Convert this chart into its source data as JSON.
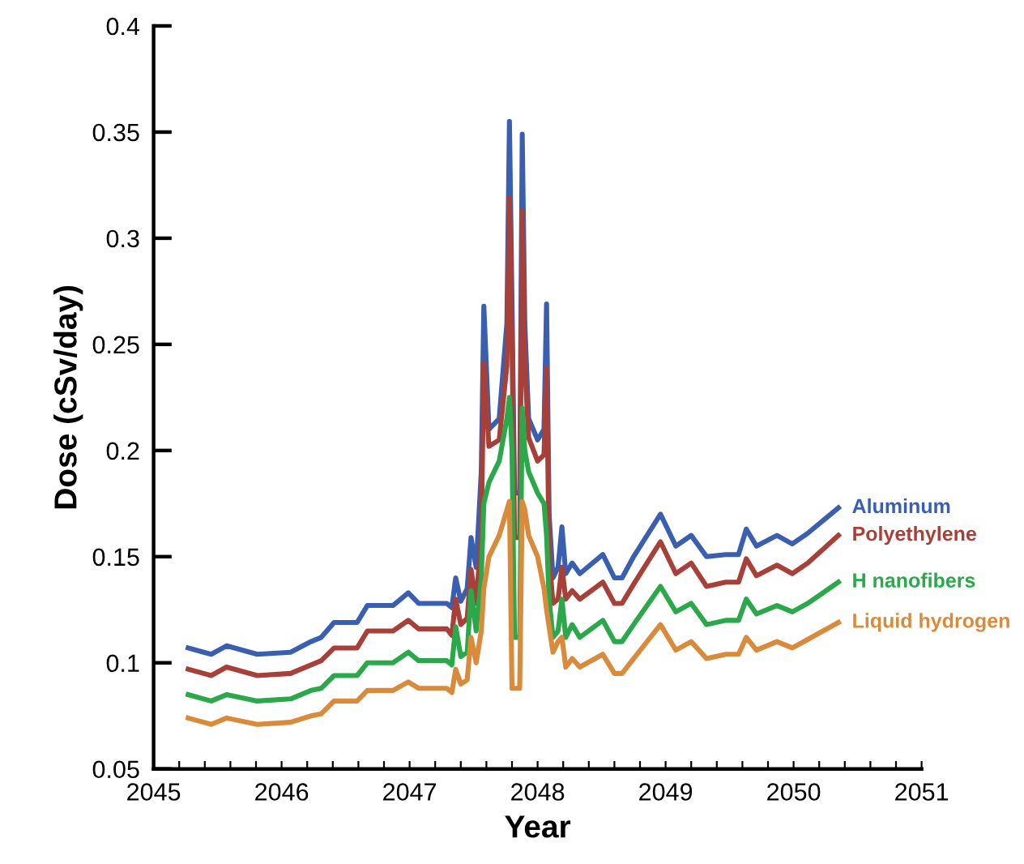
{
  "chart_data": {
    "type": "line",
    "xlabel": "Year",
    "ylabel": "Dose (cSv/day)",
    "xlim": [
      2045,
      2051
    ],
    "ylim": [
      0.05,
      0.4
    ],
    "xticks": [
      2045,
      {
        "value": 2045.2,
        "label": null
      },
      {
        "value": 2045.4,
        "label": null
      },
      {
        "value": 2045.6,
        "label": null
      },
      {
        "value": 2045.8,
        "label": null
      },
      2046,
      {
        "value": 2046.2,
        "label": null
      },
      {
        "value": 2046.4,
        "label": null
      },
      {
        "value": 2046.6,
        "label": null
      },
      {
        "value": 2046.8,
        "label": null
      },
      2047,
      {
        "value": 2047.2,
        "label": null
      },
      {
        "value": 2047.4,
        "label": null
      },
      {
        "value": 2047.6,
        "label": null
      },
      {
        "value": 2047.8,
        "label": null
      },
      2048,
      {
        "value": 2048.2,
        "label": null
      },
      {
        "value": 2048.4,
        "label": null
      },
      {
        "value": 2048.6,
        "label": null
      },
      {
        "value": 2048.8,
        "label": null
      },
      2049,
      {
        "value": 2049.2,
        "label": null
      },
      {
        "value": 2049.4,
        "label": null
      },
      {
        "value": 2049.6,
        "label": null
      },
      {
        "value": 2049.8,
        "label": null
      },
      2050,
      {
        "value": 2050.2,
        "label": null
      },
      {
        "value": 2050.4,
        "label": null
      },
      {
        "value": 2050.6,
        "label": null
      },
      {
        "value": 2050.8,
        "label": null
      },
      2051
    ],
    "yticks": [
      0.05,
      0.1,
      0.15,
      0.2,
      0.25,
      0.3,
      0.35,
      0.4
    ],
    "grid": false,
    "legend": false,
    "marker": "none",
    "line_style": "solid",
    "x": [
      2045.27,
      2045.45,
      2045.57,
      2045.81,
      2046.07,
      2046.23,
      2046.31,
      2046.41,
      2046.59,
      2046.67,
      2046.87,
      2046.99,
      2047.07,
      2047.29,
      2047.33,
      2047.36,
      2047.4,
      2047.45,
      2047.48,
      2047.52,
      2047.56,
      2047.58,
      2047.62,
      2047.7,
      2047.76,
      2047.78,
      2047.8,
      2047.82,
      2047.86,
      2047.88,
      2047.9,
      2047.93,
      2048.0,
      2048.05,
      2048.07,
      2048.09,
      2048.12,
      2048.16,
      2048.19,
      2048.22,
      2048.27,
      2048.33,
      2048.51,
      2048.6,
      2048.66,
      2048.75,
      2048.96,
      2049.08,
      2049.2,
      2049.32,
      2049.47,
      2049.57,
      2049.63,
      2049.71,
      2049.87,
      2049.99,
      2050.11,
      2050.35
    ],
    "series": [
      {
        "name": "Aluminum",
        "color": "#3a5fb0",
        "values": [
          0.107,
          0.104,
          0.108,
          0.104,
          0.105,
          0.11,
          0.112,
          0.119,
          0.119,
          0.127,
          0.127,
          0.133,
          0.128,
          0.128,
          0.126,
          0.14,
          0.129,
          0.135,
          0.159,
          0.145,
          0.19,
          0.268,
          0.21,
          0.215,
          0.26,
          0.355,
          0.27,
          0.18,
          0.18,
          0.349,
          0.26,
          0.215,
          0.205,
          0.21,
          0.269,
          0.17,
          0.14,
          0.145,
          0.164,
          0.142,
          0.147,
          0.142,
          0.151,
          0.14,
          0.14,
          0.15,
          0.17,
          0.155,
          0.16,
          0.15,
          0.151,
          0.151,
          0.163,
          0.155,
          0.16,
          0.156,
          0.161,
          0.173
        ]
      },
      {
        "name": "Polyethylene",
        "color": "#a8403a",
        "values": [
          0.097,
          0.094,
          0.098,
          0.094,
          0.095,
          0.099,
          0.101,
          0.107,
          0.107,
          0.115,
          0.115,
          0.12,
          0.116,
          0.116,
          0.113,
          0.13,
          0.118,
          0.121,
          0.144,
          0.128,
          0.16,
          0.241,
          0.202,
          0.205,
          0.24,
          0.319,
          0.25,
          0.159,
          0.159,
          0.313,
          0.24,
          0.206,
          0.195,
          0.198,
          0.239,
          0.15,
          0.128,
          0.13,
          0.145,
          0.13,
          0.134,
          0.13,
          0.138,
          0.128,
          0.128,
          0.137,
          0.157,
          0.142,
          0.147,
          0.136,
          0.138,
          0.138,
          0.149,
          0.141,
          0.146,
          0.142,
          0.147,
          0.16
        ]
      },
      {
        "name": "H nanofibers",
        "color": "#2aa84a",
        "values": [
          0.085,
          0.082,
          0.085,
          0.082,
          0.083,
          0.087,
          0.088,
          0.094,
          0.094,
          0.1,
          0.1,
          0.105,
          0.101,
          0.101,
          0.099,
          0.117,
          0.103,
          0.105,
          0.134,
          0.115,
          0.14,
          0.175,
          0.185,
          0.195,
          0.215,
          0.225,
          0.2,
          0.112,
          0.112,
          0.22,
          0.2,
          0.19,
          0.18,
          0.175,
          0.16,
          0.13,
          0.112,
          0.115,
          0.13,
          0.112,
          0.118,
          0.112,
          0.12,
          0.11,
          0.11,
          0.118,
          0.136,
          0.124,
          0.128,
          0.118,
          0.12,
          0.12,
          0.13,
          0.123,
          0.127,
          0.124,
          0.128,
          0.138
        ]
      },
      {
        "name": "Liquid hydrogen",
        "color": "#d98a3a",
        "values": [
          0.074,
          0.071,
          0.074,
          0.071,
          0.072,
          0.075,
          0.076,
          0.082,
          0.082,
          0.087,
          0.087,
          0.091,
          0.088,
          0.088,
          0.086,
          0.097,
          0.09,
          0.092,
          0.112,
          0.1,
          0.115,
          0.135,
          0.15,
          0.16,
          0.172,
          0.176,
          0.088,
          0.088,
          0.088,
          0.176,
          0.172,
          0.16,
          0.15,
          0.135,
          0.125,
          0.117,
          0.105,
          0.11,
          0.112,
          0.098,
          0.102,
          0.098,
          0.104,
          0.095,
          0.095,
          0.102,
          0.118,
          0.106,
          0.11,
          0.102,
          0.104,
          0.104,
          0.112,
          0.106,
          0.11,
          0.107,
          0.111,
          0.119
        ]
      }
    ]
  }
}
